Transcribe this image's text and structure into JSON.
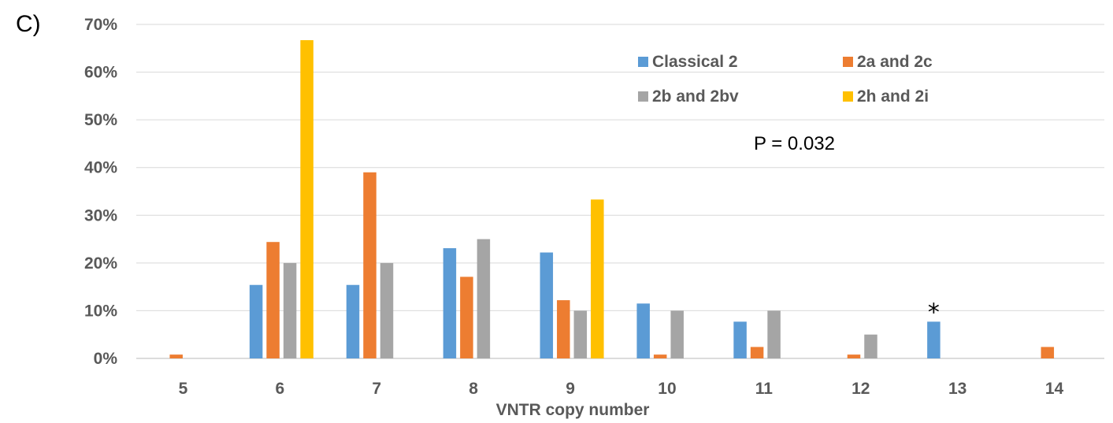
{
  "chart_data": {
    "type": "bar",
    "panel_label": "C)",
    "xlabel": "VNTR copy number",
    "ylabel": "",
    "categories": [
      "5",
      "6",
      "7",
      "8",
      "9",
      "10",
      "11",
      "12",
      "13",
      "14"
    ],
    "ylim": [
      0,
      70
    ],
    "yticks": [
      "0%",
      "10%",
      "20%",
      "30%",
      "40%",
      "50%",
      "60%",
      "70%"
    ],
    "grid": true,
    "legend_position": "top-right",
    "series": [
      {
        "name": "Classical 2",
        "color": "#5B9BD5",
        "values": [
          0,
          15.4,
          15.4,
          23.1,
          22.2,
          11.5,
          7.7,
          0,
          7.7,
          0
        ]
      },
      {
        "name": "2a and 2c",
        "color": "#ED7D31",
        "values": [
          0.8,
          24.4,
          39.0,
          17.1,
          12.2,
          0.8,
          2.4,
          0.8,
          0,
          2.4
        ]
      },
      {
        "name": "2b and 2bv",
        "color": "#A5A5A5",
        "values": [
          0,
          20,
          20,
          25,
          10,
          10,
          10,
          5,
          0,
          0
        ]
      },
      {
        "name": "2h and 2i",
        "color": "#FFC000",
        "values": [
          0,
          66.7,
          0,
          0,
          33.3,
          0,
          0,
          0,
          0,
          0
        ]
      }
    ],
    "annotations": {
      "pvalue": "P = 0.032",
      "star": "*"
    }
  }
}
